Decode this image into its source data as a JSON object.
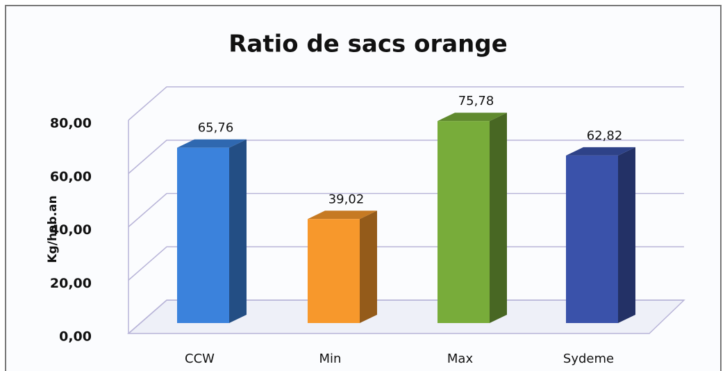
{
  "chart_data": {
    "type": "bar",
    "title": "Ratio de sacs orange",
    "y_label": "Kg/hab.an",
    "categories": [
      "CCW",
      "Min",
      "Max",
      "Sydeme"
    ],
    "values": [
      65.76,
      39.02,
      75.78,
      62.82
    ],
    "value_labels": [
      "65,76",
      "39,02",
      "75,78",
      "62,82"
    ],
    "colors": [
      "#3b82dc",
      "#f7982c",
      "#78ac3a",
      "#3a52aa"
    ],
    "ylim": [
      0,
      80
    ],
    "yticks": [
      {
        "value": 0,
        "label": "0,00"
      },
      {
        "value": 20,
        "label": "20,00"
      },
      {
        "value": 40,
        "label": "40,00"
      },
      {
        "value": 60,
        "label": "60,00"
      },
      {
        "value": 80,
        "label": "80,00"
      }
    ],
    "grid": true
  }
}
